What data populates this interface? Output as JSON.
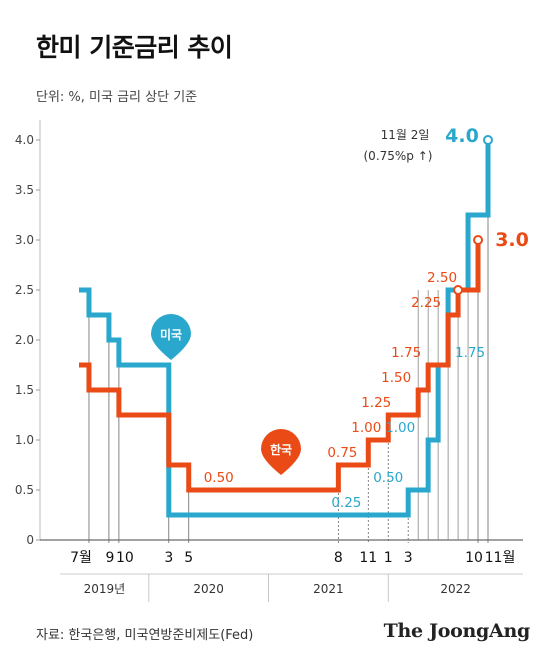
{
  "title": "한미 기준금리 추이",
  "subtitle": "단위: %, 미국 금리 상단 기준",
  "source": "자료: 한국은행, 미국연방준비제도(Fed)",
  "brand": "The JoongAng",
  "chart_data": {
    "type": "line",
    "step": true,
    "ylim": [
      0,
      4.0
    ],
    "yticks": [
      "0",
      "0.5",
      "1.0",
      "1.5",
      "2.0",
      "2.5",
      "3.0",
      "3.5",
      "4.0"
    ],
    "month_ticks": [
      "7월",
      "9",
      "10",
      "3",
      "5",
      "8",
      "11",
      "1",
      "3",
      "10",
      "11월"
    ],
    "years": [
      "2019년",
      "2020",
      "2021",
      "2022"
    ],
    "colors": {
      "us": "#2aa7cc",
      "kr": "#ea4b16"
    },
    "series": [
      {
        "name": "미국",
        "points": [
          [
            "2019-06",
            2.5
          ],
          [
            "2019-07",
            2.25
          ],
          [
            "2019-09",
            2.0
          ],
          [
            "2019-10",
            1.75
          ],
          [
            "2020-03",
            0.25
          ],
          [
            "2022-03",
            0.5
          ],
          [
            "2022-05",
            1.0
          ],
          [
            "2022-06",
            1.75
          ],
          [
            "2022-07",
            2.5
          ],
          [
            "2022-09",
            3.25
          ],
          [
            "2022-11",
            4.0
          ]
        ],
        "labels": [
          "0.25",
          "0.50",
          "1.00",
          "1.75"
        ],
        "end_label": "4.0"
      },
      {
        "name": "한국",
        "points": [
          [
            "2019-06",
            1.75
          ],
          [
            "2019-07",
            1.5
          ],
          [
            "2019-10",
            1.25
          ],
          [
            "2020-03",
            0.75
          ],
          [
            "2020-05",
            0.5
          ],
          [
            "2021-08",
            0.75
          ],
          [
            "2021-11",
            1.0
          ],
          [
            "2022-01",
            1.25
          ],
          [
            "2022-04",
            1.5
          ],
          [
            "2022-05",
            1.75
          ],
          [
            "2022-07",
            2.25
          ],
          [
            "2022-08",
            2.5
          ],
          [
            "2022-10",
            3.0
          ]
        ],
        "labels": [
          "0.50",
          "0.75",
          "1.00",
          "1.25",
          "1.50",
          "1.75",
          "2.25",
          "2.50"
        ],
        "end_label": "3.0"
      }
    ],
    "annotation": [
      "11월 2일",
      "(0.75%p ↑)"
    ]
  }
}
